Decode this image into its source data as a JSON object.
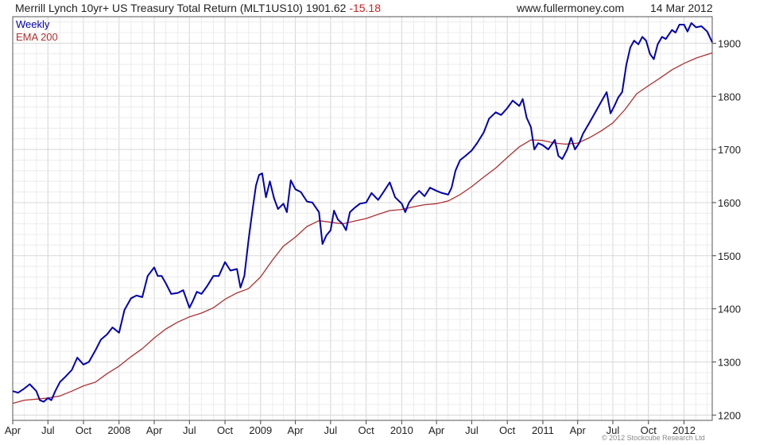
{
  "header": {
    "title": "Merrill Lynch 10yr+ US Treasury Total Return (MLT1US10)",
    "last_value": "1901.62",
    "change": "-15.18",
    "site": "www.fullermoney.com",
    "date": "14 Mar 2012"
  },
  "copyright": "© 2012 Stockcube Research Ltd",
  "chart_data": {
    "type": "line",
    "title": "Merrill Lynch 10yr+ US Treasury Total Return (MLT1US10)",
    "xlabel": "",
    "ylabel": "",
    "ylim": [
      1190,
      1950
    ],
    "y_ticks": [
      1200,
      1300,
      1400,
      1500,
      1600,
      1700,
      1800,
      1900
    ],
    "x_axis_dates": [
      "2007-04-01",
      "2012-03-14"
    ],
    "x_ticks": [
      {
        "label": "Apr",
        "date": "2007-04-01"
      },
      {
        "label": "Jul",
        "date": "2007-07-01"
      },
      {
        "label": "Oct",
        "date": "2007-10-01"
      },
      {
        "label": "2008",
        "date": "2008-01-01"
      },
      {
        "label": "Apr",
        "date": "2008-04-01"
      },
      {
        "label": "Jul",
        "date": "2008-07-01"
      },
      {
        "label": "Oct",
        "date": "2008-10-01"
      },
      {
        "label": "2009",
        "date": "2009-01-01"
      },
      {
        "label": "Apr",
        "date": "2009-04-01"
      },
      {
        "label": "Jul",
        "date": "2009-07-01"
      },
      {
        "label": "Oct",
        "date": "2009-10-01"
      },
      {
        "label": "2010",
        "date": "2010-01-01"
      },
      {
        "label": "Apr",
        "date": "2010-04-01"
      },
      {
        "label": "Jul",
        "date": "2010-07-01"
      },
      {
        "label": "Oct",
        "date": "2010-10-01"
      },
      {
        "label": "2011",
        "date": "2011-01-01"
      },
      {
        "label": "Apr",
        "date": "2011-04-01"
      },
      {
        "label": "Jul",
        "date": "2011-07-01"
      },
      {
        "label": "Oct",
        "date": "2011-10-01"
      },
      {
        "label": "2012",
        "date": "2012-01-01"
      }
    ],
    "grid": true,
    "legend_position": "top-left",
    "series": [
      {
        "name": "Weekly",
        "color": "#0000b0",
        "points": [
          [
            "2007-04-01",
            1245
          ],
          [
            "2007-04-15",
            1242
          ],
          [
            "2007-05-01",
            1250
          ],
          [
            "2007-05-15",
            1258
          ],
          [
            "2007-06-01",
            1245
          ],
          [
            "2007-06-10",
            1228
          ],
          [
            "2007-06-20",
            1225
          ],
          [
            "2007-07-01",
            1232
          ],
          [
            "2007-07-10",
            1228
          ],
          [
            "2007-07-20",
            1245
          ],
          [
            "2007-08-01",
            1262
          ],
          [
            "2007-08-15",
            1272
          ],
          [
            "2007-09-01",
            1285
          ],
          [
            "2007-09-15",
            1308
          ],
          [
            "2007-10-01",
            1295
          ],
          [
            "2007-10-15",
            1300
          ],
          [
            "2007-11-01",
            1322
          ],
          [
            "2007-11-15",
            1342
          ],
          [
            "2007-12-01",
            1352
          ],
          [
            "2007-12-15",
            1365
          ],
          [
            "2008-01-01",
            1355
          ],
          [
            "2008-01-15",
            1398
          ],
          [
            "2008-02-01",
            1420
          ],
          [
            "2008-02-15",
            1425
          ],
          [
            "2008-03-01",
            1422
          ],
          [
            "2008-03-15",
            1462
          ],
          [
            "2008-04-01",
            1478
          ],
          [
            "2008-04-10",
            1462
          ],
          [
            "2008-04-20",
            1462
          ],
          [
            "2008-05-01",
            1448
          ],
          [
            "2008-05-15",
            1428
          ],
          [
            "2008-06-01",
            1430
          ],
          [
            "2008-06-15",
            1435
          ],
          [
            "2008-07-01",
            1402
          ],
          [
            "2008-07-10",
            1415
          ],
          [
            "2008-07-20",
            1432
          ],
          [
            "2008-08-01",
            1428
          ],
          [
            "2008-08-15",
            1442
          ],
          [
            "2008-09-01",
            1462
          ],
          [
            "2008-09-15",
            1462
          ],
          [
            "2008-10-01",
            1488
          ],
          [
            "2008-10-15",
            1472
          ],
          [
            "2008-11-01",
            1475
          ],
          [
            "2008-11-10",
            1440
          ],
          [
            "2008-11-20",
            1462
          ],
          [
            "2008-12-01",
            1530
          ],
          [
            "2008-12-10",
            1580
          ],
          [
            "2008-12-20",
            1632
          ],
          [
            "2008-12-28",
            1652
          ],
          [
            "2009-01-05",
            1655
          ],
          [
            "2009-01-15",
            1610
          ],
          [
            "2009-01-25",
            1640
          ],
          [
            "2009-02-05",
            1608
          ],
          [
            "2009-02-15",
            1588
          ],
          [
            "2009-03-01",
            1598
          ],
          [
            "2009-03-10",
            1582
          ],
          [
            "2009-03-20",
            1642
          ],
          [
            "2009-04-01",
            1625
          ],
          [
            "2009-04-15",
            1620
          ],
          [
            "2009-05-01",
            1602
          ],
          [
            "2009-05-15",
            1600
          ],
          [
            "2009-06-01",
            1582
          ],
          [
            "2009-06-10",
            1522
          ],
          [
            "2009-06-20",
            1538
          ],
          [
            "2009-07-01",
            1548
          ],
          [
            "2009-07-10",
            1585
          ],
          [
            "2009-07-20",
            1568
          ],
          [
            "2009-08-01",
            1560
          ],
          [
            "2009-08-10",
            1548
          ],
          [
            "2009-08-20",
            1582
          ],
          [
            "2009-09-01",
            1590
          ],
          [
            "2009-09-15",
            1598
          ],
          [
            "2009-10-01",
            1600
          ],
          [
            "2009-10-15",
            1618
          ],
          [
            "2009-11-01",
            1605
          ],
          [
            "2009-11-15",
            1620
          ],
          [
            "2009-12-01",
            1638
          ],
          [
            "2009-12-15",
            1610
          ],
          [
            "2010-01-01",
            1598
          ],
          [
            "2010-01-10",
            1582
          ],
          [
            "2010-01-20",
            1600
          ],
          [
            "2010-02-01",
            1612
          ],
          [
            "2010-02-15",
            1622
          ],
          [
            "2010-03-01",
            1612
          ],
          [
            "2010-03-15",
            1628
          ],
          [
            "2010-04-01",
            1622
          ],
          [
            "2010-04-15",
            1618
          ],
          [
            "2010-05-01",
            1615
          ],
          [
            "2010-05-10",
            1628
          ],
          [
            "2010-05-20",
            1660
          ],
          [
            "2010-06-01",
            1680
          ],
          [
            "2010-06-15",
            1688
          ],
          [
            "2010-07-01",
            1698
          ],
          [
            "2010-07-15",
            1712
          ],
          [
            "2010-08-01",
            1732
          ],
          [
            "2010-08-15",
            1758
          ],
          [
            "2010-09-01",
            1770
          ],
          [
            "2010-09-15",
            1765
          ],
          [
            "2010-10-01",
            1778
          ],
          [
            "2010-10-15",
            1792
          ],
          [
            "2010-11-01",
            1782
          ],
          [
            "2010-11-10",
            1795
          ],
          [
            "2010-11-20",
            1760
          ],
          [
            "2010-12-01",
            1742
          ],
          [
            "2010-12-10",
            1700
          ],
          [
            "2010-12-20",
            1712
          ],
          [
            "2011-01-01",
            1708
          ],
          [
            "2011-01-15",
            1700
          ],
          [
            "2011-02-01",
            1718
          ],
          [
            "2011-02-10",
            1688
          ],
          [
            "2011-02-20",
            1682
          ],
          [
            "2011-03-05",
            1700
          ],
          [
            "2011-03-15",
            1722
          ],
          [
            "2011-03-25",
            1700
          ],
          [
            "2011-04-05",
            1712
          ],
          [
            "2011-04-15",
            1730
          ],
          [
            "2011-05-01",
            1750
          ],
          [
            "2011-05-15",
            1768
          ],
          [
            "2011-06-01",
            1790
          ],
          [
            "2011-06-15",
            1808
          ],
          [
            "2011-06-25",
            1768
          ],
          [
            "2011-07-05",
            1782
          ],
          [
            "2011-07-15",
            1798
          ],
          [
            "2011-07-25",
            1808
          ],
          [
            "2011-08-05",
            1860
          ],
          [
            "2011-08-15",
            1892
          ],
          [
            "2011-08-25",
            1905
          ],
          [
            "2011-09-05",
            1898
          ],
          [
            "2011-09-15",
            1912
          ],
          [
            "2011-09-25",
            1905
          ],
          [
            "2011-10-05",
            1880
          ],
          [
            "2011-10-15",
            1870
          ],
          [
            "2011-10-25",
            1898
          ],
          [
            "2011-11-05",
            1912
          ],
          [
            "2011-11-15",
            1908
          ],
          [
            "2011-12-01",
            1925
          ],
          [
            "2011-12-10",
            1920
          ],
          [
            "2011-12-20",
            1935
          ],
          [
            "2012-01-01",
            1935
          ],
          [
            "2012-01-10",
            1922
          ],
          [
            "2012-01-20",
            1938
          ],
          [
            "2012-02-01",
            1930
          ],
          [
            "2012-02-15",
            1932
          ],
          [
            "2012-03-01",
            1922
          ],
          [
            "2012-03-14",
            1901.62
          ]
        ]
      },
      {
        "name": "EMA 200",
        "color": "#b03030",
        "points": [
          [
            "2007-04-01",
            1222
          ],
          [
            "2007-05-01",
            1228
          ],
          [
            "2007-06-01",
            1230
          ],
          [
            "2007-07-01",
            1232
          ],
          [
            "2007-08-01",
            1236
          ],
          [
            "2007-09-01",
            1245
          ],
          [
            "2007-10-01",
            1255
          ],
          [
            "2007-11-01",
            1262
          ],
          [
            "2007-12-01",
            1278
          ],
          [
            "2008-01-01",
            1292
          ],
          [
            "2008-02-01",
            1310
          ],
          [
            "2008-03-01",
            1325
          ],
          [
            "2008-04-01",
            1345
          ],
          [
            "2008-05-01",
            1362
          ],
          [
            "2008-06-01",
            1375
          ],
          [
            "2008-07-01",
            1385
          ],
          [
            "2008-08-01",
            1392
          ],
          [
            "2008-09-01",
            1402
          ],
          [
            "2008-10-01",
            1418
          ],
          [
            "2008-11-01",
            1430
          ],
          [
            "2008-12-01",
            1438
          ],
          [
            "2009-01-01",
            1460
          ],
          [
            "2009-02-01",
            1492
          ],
          [
            "2009-03-01",
            1518
          ],
          [
            "2009-04-01",
            1535
          ],
          [
            "2009-05-01",
            1555
          ],
          [
            "2009-06-01",
            1566
          ],
          [
            "2009-07-01",
            1563
          ],
          [
            "2009-08-01",
            1560
          ],
          [
            "2009-09-01",
            1565
          ],
          [
            "2009-10-01",
            1570
          ],
          [
            "2009-11-01",
            1578
          ],
          [
            "2009-12-01",
            1585
          ],
          [
            "2010-01-01",
            1587
          ],
          [
            "2010-02-01",
            1592
          ],
          [
            "2010-03-01",
            1596
          ],
          [
            "2010-04-01",
            1598
          ],
          [
            "2010-05-01",
            1603
          ],
          [
            "2010-06-01",
            1615
          ],
          [
            "2010-07-01",
            1630
          ],
          [
            "2010-08-01",
            1648
          ],
          [
            "2010-09-01",
            1665
          ],
          [
            "2010-10-01",
            1685
          ],
          [
            "2010-11-01",
            1705
          ],
          [
            "2010-12-01",
            1718
          ],
          [
            "2011-01-01",
            1717
          ],
          [
            "2011-02-01",
            1712
          ],
          [
            "2011-03-01",
            1710
          ],
          [
            "2011-04-01",
            1712
          ],
          [
            "2011-05-01",
            1722
          ],
          [
            "2011-06-01",
            1735
          ],
          [
            "2011-07-01",
            1750
          ],
          [
            "2011-08-01",
            1775
          ],
          [
            "2011-09-01",
            1805
          ],
          [
            "2011-10-01",
            1820
          ],
          [
            "2011-11-01",
            1835
          ],
          [
            "2011-12-01",
            1850
          ],
          [
            "2012-01-01",
            1862
          ],
          [
            "2012-02-01",
            1872
          ],
          [
            "2012-03-14",
            1882
          ]
        ]
      }
    ]
  }
}
